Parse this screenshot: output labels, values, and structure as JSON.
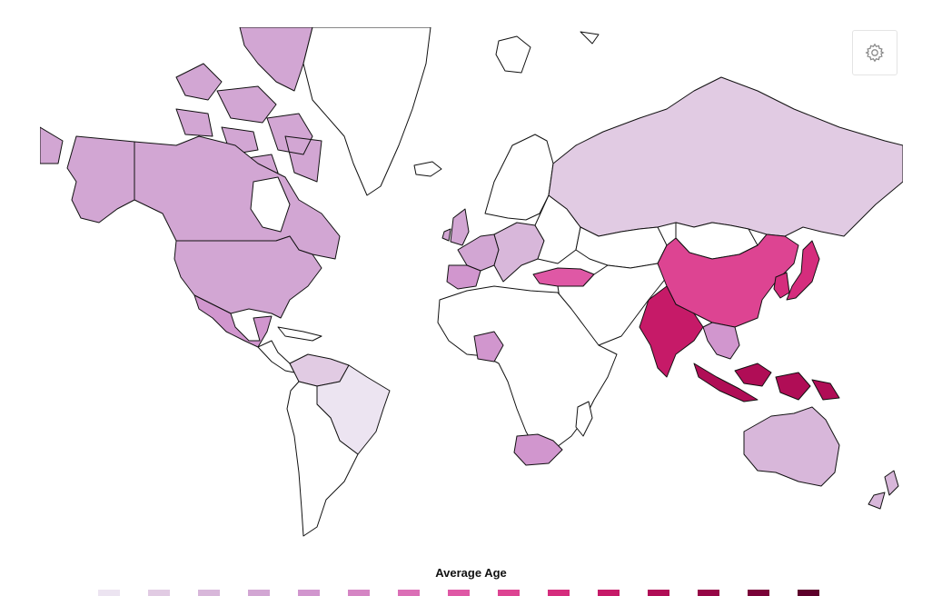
{
  "legend": {
    "title": "Average Age",
    "colors": [
      "#ece4f1",
      "#e1cbe3",
      "#d8b7da",
      "#d2a6d3",
      "#d196ce",
      "#d585c4",
      "#db6fb6",
      "#df58a5",
      "#dd4492",
      "#d52d7d",
      "#c61a68",
      "#b00d56",
      "#960646",
      "#7a0238",
      "#5d002b"
    ]
  },
  "map": {
    "region_fills": {
      "greenland": "#ffffff",
      "canada": "#d2a6d3",
      "alaska": "#d2a6d3",
      "usa": "#d2a6d3",
      "mexico": "#d196ce",
      "central_america": "#ffffff",
      "colombia_venezuela": "#e1cbe3",
      "brazil": "#ece4f1",
      "south_america_rest": "#ffffff",
      "iceland": "#ffffff",
      "uk": "#d2a6d3",
      "scandinavia": "#ffffff",
      "western_europe": "#d2a6d3",
      "spain": "#d196ce",
      "central_europe": "#d8b7da",
      "eastern_europe": "#ffffff",
      "russia": "#e1cbe3",
      "turkey": "#df58a5",
      "africa": "#ffffff",
      "nigeria": "#d196ce",
      "south_africa": "#d196ce",
      "middle_east_central_asia": "#ffffff",
      "china": "#dd4492",
      "india": "#c61a68",
      "japan": "#d52d7d",
      "korea": "#d52d7d",
      "southeast_asia": "#d196ce",
      "indonesia": "#b00d56",
      "australia": "#d8b7da",
      "new_zealand": "#d8b7da",
      "arctic_islands": "#d2a6d3",
      "svalbard": "#ffffff",
      "mongolia": "#ffffff",
      "kazakhstan": "#ffffff"
    }
  },
  "toolbar": {
    "settings_icon": "gear-icon"
  }
}
